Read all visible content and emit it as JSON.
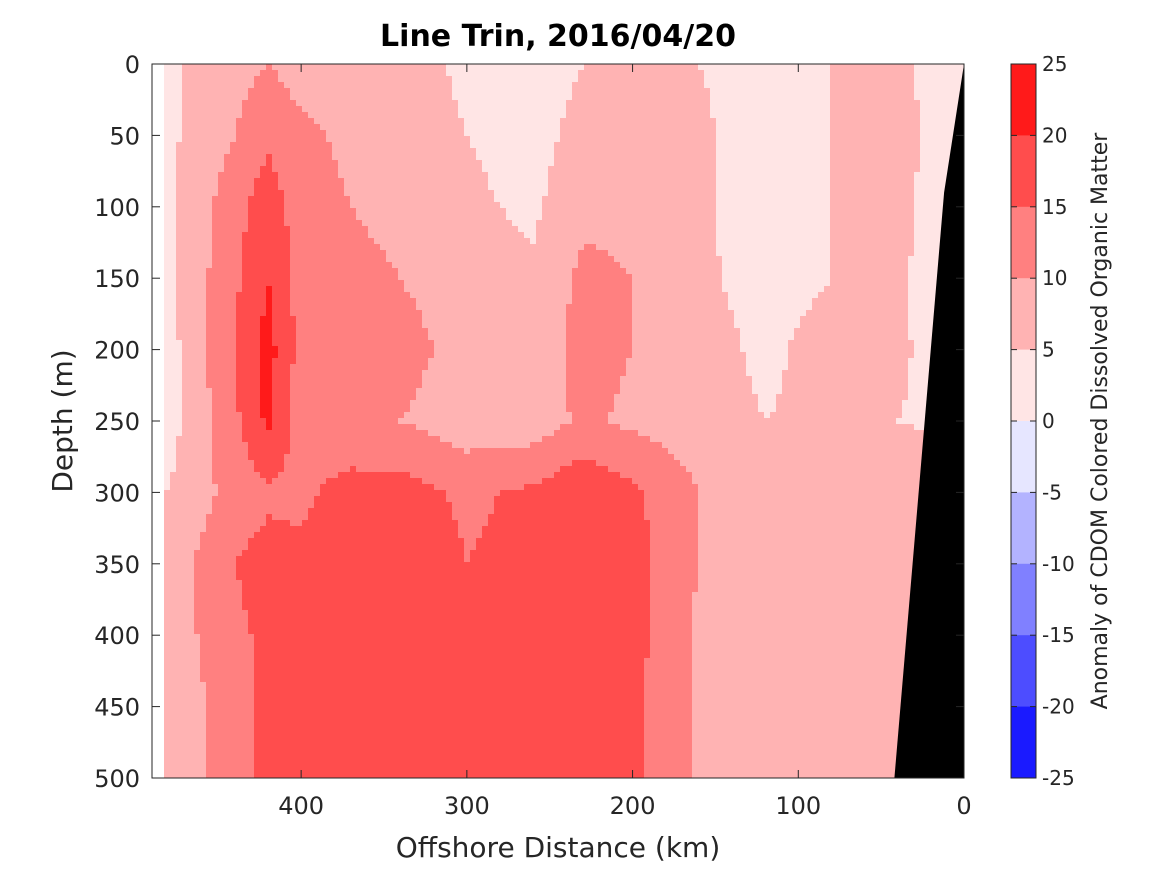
{
  "chart_data": {
    "type": "heatmap",
    "title": "Line Trin, 2016/04/20",
    "xlabel": "Offshore Distance (km)",
    "ylabel": "Depth (m)",
    "colorbar_label": "Anomaly of CDOM Colored Dissolved Organic Matter",
    "xlim": [
      490,
      0
    ],
    "ylim": [
      0,
      500
    ],
    "y_reversed": true,
    "x_reversed": true,
    "x_ticks": [
      400,
      300,
      200,
      100,
      0
    ],
    "x_tick_labels": [
      "400",
      "300",
      "200",
      "100",
      "0"
    ],
    "y_ticks": [
      0,
      50,
      100,
      150,
      200,
      250,
      300,
      350,
      400,
      450,
      500
    ],
    "y_tick_labels": [
      "0",
      "50",
      "100",
      "150",
      "200",
      "250",
      "300",
      "350",
      "400",
      "450",
      "500"
    ],
    "colorbar_ticks": [
      25,
      20,
      15,
      10,
      5,
      0,
      -5,
      -10,
      -15,
      -20,
      -25
    ],
    "colorbar_tick_labels": [
      "25",
      "20",
      "15",
      "10",
      "5",
      "0",
      "-5",
      "-10",
      "-15",
      "-20",
      "-25"
    ],
    "clim": [
      -25,
      25
    ],
    "colormap": "blue-white-red",
    "color_high": "#ff0000",
    "color_low": "#0000ff",
    "color_mid": "#ffffff",
    "topography_color": "#000000",
    "x_grid": [
      480,
      440,
      420,
      400,
      370,
      340,
      300,
      260,
      230,
      200,
      160,
      120,
      80,
      40,
      15
    ],
    "y_grid": [
      0,
      50,
      100,
      150,
      200,
      250,
      300,
      350,
      400,
      450,
      500
    ],
    "values": [
      [
        4,
        8,
        10,
        8,
        8,
        7,
        4,
        2,
        5,
        6,
        5,
        3,
        5,
        7,
        2
      ],
      [
        4,
        10,
        14,
        11,
        9,
        8,
        5,
        3,
        7,
        8,
        6,
        2,
        5,
        9,
        1
      ],
      [
        4,
        13,
        18,
        12,
        10,
        9,
        6,
        4,
        9,
        9,
        6,
        2,
        5,
        8,
        1
      ],
      [
        4,
        14,
        20,
        13,
        11,
        10,
        7,
        6,
        11,
        10,
        6,
        3,
        5,
        6,
        2
      ],
      [
        3,
        15,
        22,
        13,
        13,
        12,
        8,
        7,
        12,
        10,
        7,
        4,
        7,
        6,
        3
      ],
      [
        3,
        14,
        21,
        12,
        11,
        10,
        7,
        7,
        11,
        9,
        7,
        5,
        6,
        5,
        4
      ],
      [
        5,
        12,
        14,
        14,
        17,
        17,
        14,
        16,
        19,
        16,
        10,
        9,
        10,
        9,
        8
      ],
      [
        7,
        15,
        17,
        16,
        18,
        19,
        15,
        17,
        20,
        17,
        10,
        8,
        9,
        8,
        7
      ],
      [
        7,
        14,
        16,
        17,
        18,
        17,
        15,
        16,
        19,
        17,
        9,
        7,
        8,
        7,
        6
      ],
      [
        6,
        13,
        16,
        17,
        18,
        17,
        15,
        16,
        19,
        16,
        9,
        7,
        8,
        8,
        7
      ],
      [
        6,
        13,
        16,
        18,
        19,
        19,
        16,
        17,
        18,
        16,
        9,
        8,
        9,
        8,
        7
      ]
    ],
    "topography_outline": [
      [
        0,
        0
      ],
      [
        12,
        90
      ],
      [
        42,
        500
      ],
      [
        0,
        500
      ]
    ]
  }
}
